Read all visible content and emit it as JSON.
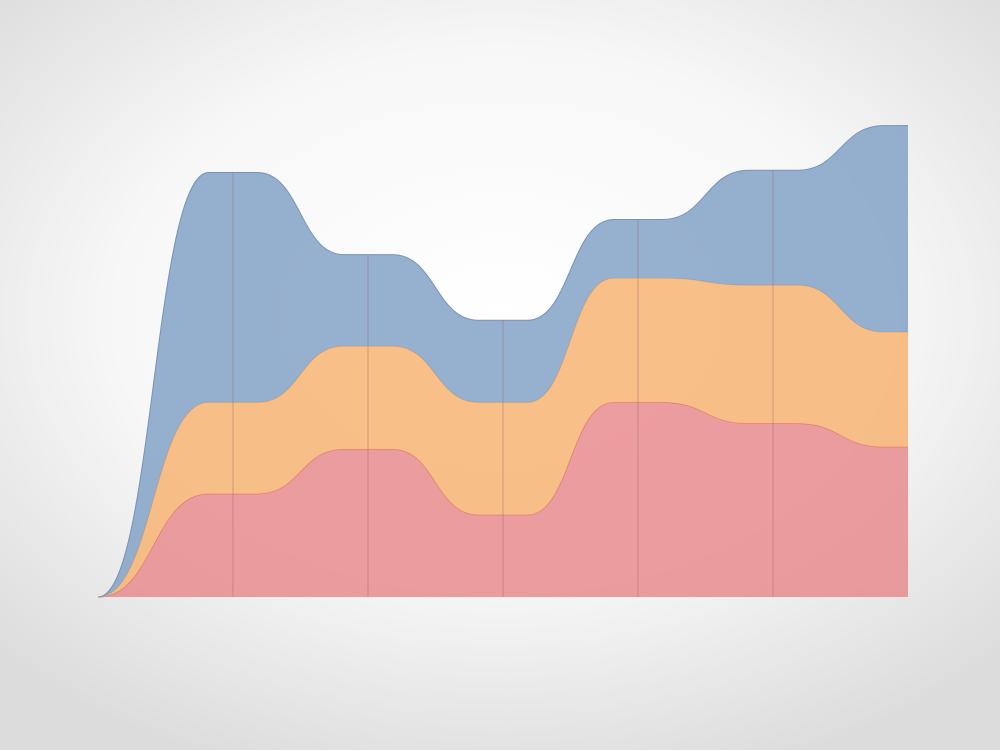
{
  "chart_data": {
    "type": "area",
    "stacked": true,
    "curve": "smooth-step",
    "title": "",
    "xlabel": "",
    "ylabel": "",
    "x": [
      0,
      1,
      2,
      3,
      4,
      5,
      6
    ],
    "xlim": [
      0,
      6
    ],
    "ylim": [
      0,
      100
    ],
    "grid": "vertical",
    "axes_visible": false,
    "series": [
      {
        "color": "#e8878a",
        "values": [
          0,
          22,
          31.5,
          17.5,
          41.5,
          37,
          32
        ]
      },
      {
        "color": "#f6b26e",
        "values": [
          0,
          19.5,
          22,
          24,
          26.5,
          29.5,
          24.5
        ]
      },
      {
        "color": "#7f9fc5",
        "values": [
          0,
          49,
          19.5,
          17.5,
          12.5,
          24.5,
          44
        ]
      }
    ]
  }
}
